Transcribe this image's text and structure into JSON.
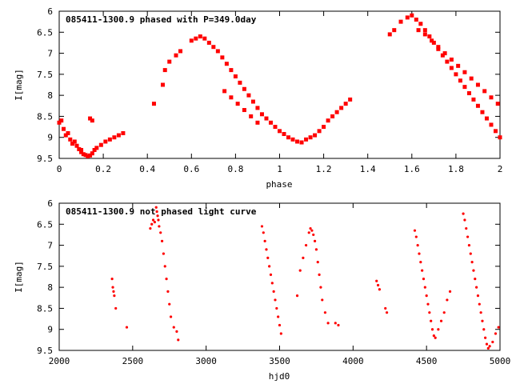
{
  "chart_data": [
    {
      "type": "scatter",
      "title": "085411-1300.9 phased with P=349.0day",
      "xlabel": "phase",
      "ylabel": "I[mag]",
      "xlim": [
        0,
        2
      ],
      "ylim": [
        9.5,
        6
      ],
      "y_inverted": true,
      "grid": false,
      "xticks": [
        0,
        0.2,
        0.4,
        0.6,
        0.8,
        1,
        1.2,
        1.4,
        1.6,
        1.8,
        2
      ],
      "xtick_labels": [
        "0",
        "0.2",
        "0.4",
        "0.6",
        "0.8",
        "1",
        "1.2",
        "1.4",
        "1.6",
        "1.8",
        "2"
      ],
      "yticks": [
        6,
        6.5,
        7,
        7.5,
        8,
        8.5,
        9,
        9.5
      ],
      "ytick_labels": [
        "6",
        "6.5",
        "7",
        "7.5",
        "8",
        "8.5",
        "9",
        "9.5"
      ],
      "marker_color": "#ff0000",
      "series": [
        {
          "name": "",
          "x": [
            0.0,
            0.02,
            0.03,
            0.05,
            0.06,
            0.08,
            0.09,
            0.1,
            0.11,
            0.12,
            0.13,
            0.14,
            0.15,
            0.16,
            0.17,
            0.19,
            0.21,
            0.23,
            0.25,
            0.27,
            0.29,
            0.01,
            0.04,
            0.07,
            0.1,
            0.14,
            0.15,
            0.43,
            0.47,
            0.48,
            0.5,
            0.53,
            0.55,
            0.6,
            0.62,
            0.64,
            0.66,
            0.68,
            0.7,
            0.72,
            0.74,
            0.76,
            0.78,
            0.8,
            0.82,
            0.84,
            0.86,
            0.88,
            0.9,
            0.92,
            0.94,
            0.96,
            0.98,
            1.0,
            1.02,
            1.04,
            1.06,
            1.08,
            1.1,
            0.75,
            0.78,
            0.81,
            0.84,
            0.87,
            0.9,
            1.12,
            1.14,
            1.16,
            1.18,
            1.2,
            1.22,
            1.24,
            1.26,
            1.28,
            1.3,
            1.32,
            1.5,
            1.52,
            1.55,
            1.58,
            1.6,
            1.62,
            1.64,
            1.66,
            1.68,
            1.7,
            1.72,
            1.74,
            1.76,
            1.78,
            1.8,
            1.82,
            1.84,
            1.86,
            1.88,
            1.9,
            1.92,
            1.94,
            1.96,
            1.98,
            2.0,
            1.63,
            1.66,
            1.69,
            1.72,
            1.75,
            1.78,
            1.81,
            1.84,
            1.87,
            1.9,
            1.93,
            1.96,
            1.99
          ],
          "y": [
            8.65,
            8.8,
            8.95,
            9.05,
            9.15,
            9.2,
            9.28,
            9.35,
            9.4,
            9.42,
            9.45,
            9.43,
            9.38,
            9.3,
            9.25,
            9.18,
            9.1,
            9.05,
            9.0,
            8.95,
            8.9,
            8.6,
            8.9,
            9.1,
            9.3,
            8.55,
            8.6,
            8.2,
            7.75,
            7.4,
            7.2,
            7.05,
            6.95,
            6.7,
            6.65,
            6.6,
            6.65,
            6.75,
            6.85,
            6.95,
            7.1,
            7.25,
            7.4,
            7.55,
            7.7,
            7.85,
            8.0,
            8.15,
            8.3,
            8.45,
            8.55,
            8.65,
            8.75,
            8.85,
            8.92,
            9.0,
            9.05,
            9.1,
            9.12,
            7.9,
            8.05,
            8.2,
            8.35,
            8.5,
            8.65,
            9.05,
            9.0,
            8.95,
            8.85,
            8.75,
            8.6,
            8.5,
            8.4,
            8.3,
            8.2,
            8.1,
            6.55,
            6.45,
            6.25,
            6.15,
            6.1,
            6.2,
            6.3,
            6.45,
            6.6,
            6.75,
            6.9,
            7.05,
            7.2,
            7.35,
            7.5,
            7.65,
            7.8,
            7.95,
            8.1,
            8.25,
            8.4,
            8.55,
            8.7,
            8.85,
            9.0,
            6.45,
            6.55,
            6.7,
            6.85,
            7.0,
            7.15,
            7.3,
            7.45,
            7.6,
            7.75,
            7.9,
            8.05,
            8.2
          ]
        }
      ]
    },
    {
      "type": "scatter",
      "title": "085411-1300.9 not phased light curve",
      "xlabel": "hjd0",
      "ylabel": "I[mag]",
      "xlim": [
        2000,
        5000
      ],
      "ylim": [
        9.5,
        6
      ],
      "y_inverted": true,
      "grid": false,
      "xticks": [
        2000,
        2500,
        3000,
        3500,
        4000,
        4500,
        5000
      ],
      "xtick_labels": [
        "2000",
        "2500",
        "3000",
        "3500",
        "4000",
        "4500",
        "5000"
      ],
      "yticks": [
        6,
        6.5,
        7,
        7.5,
        8,
        8.5,
        9,
        9.5
      ],
      "ytick_labels": [
        "6",
        "6.5",
        "7",
        "7.5",
        "8",
        "8.5",
        "9",
        "9.5"
      ],
      "marker_color": "#ff0000",
      "series": [
        {
          "name": "",
          "x": [
            2360,
            2365,
            2370,
            2375,
            2385,
            2460,
            2620,
            2630,
            2640,
            2650,
            2660,
            2665,
            2670,
            2675,
            2680,
            2690,
            2700,
            2710,
            2720,
            2730,
            2740,
            2750,
            2760,
            2780,
            2800,
            2810,
            3380,
            3390,
            3400,
            3410,
            3420,
            3430,
            3440,
            3450,
            3460,
            3470,
            3480,
            3490,
            3500,
            3510,
            3620,
            3640,
            3660,
            3680,
            3700,
            3710,
            3720,
            3730,
            3740,
            3750,
            3760,
            3770,
            3780,
            3790,
            3810,
            3830,
            3880,
            3900,
            4160,
            4170,
            4180,
            4220,
            4230,
            4420,
            4430,
            4440,
            4450,
            4460,
            4470,
            4480,
            4490,
            4500,
            4510,
            4520,
            4530,
            4540,
            4550,
            4560,
            4580,
            4600,
            4620,
            4640,
            4660,
            4750,
            4760,
            4770,
            4780,
            4790,
            4800,
            4810,
            4820,
            4830,
            4840,
            4850,
            4860,
            4870,
            4880,
            4890,
            4900,
            4910,
            4920,
            4930,
            4950,
            4970,
            4990
          ],
          "y": [
            7.8,
            8.0,
            8.1,
            8.2,
            8.5,
            8.95,
            6.6,
            6.5,
            6.4,
            6.45,
            6.1,
            6.2,
            6.3,
            6.4,
            6.55,
            6.7,
            6.9,
            7.2,
            7.5,
            7.8,
            8.1,
            8.4,
            8.7,
            8.95,
            9.05,
            9.25,
            6.55,
            6.7,
            6.9,
            7.1,
            7.3,
            7.5,
            7.7,
            7.9,
            8.1,
            8.3,
            8.5,
            8.7,
            8.9,
            9.1,
            8.2,
            7.6,
            7.3,
            7.0,
            6.7,
            6.6,
            6.65,
            6.75,
            6.9,
            7.1,
            7.4,
            7.7,
            8.0,
            8.3,
            8.6,
            8.85,
            8.85,
            8.9,
            7.85,
            7.95,
            8.05,
            8.5,
            8.6,
            6.65,
            6.8,
            7.0,
            7.2,
            7.4,
            7.6,
            7.8,
            8.0,
            8.2,
            8.4,
            8.6,
            8.8,
            9.0,
            9.15,
            9.2,
            9.0,
            8.8,
            8.6,
            8.3,
            8.1,
            6.25,
            6.4,
            6.6,
            6.8,
            7.0,
            7.2,
            7.4,
            7.6,
            7.8,
            8.0,
            8.2,
            8.4,
            8.6,
            8.8,
            9.0,
            9.2,
            9.35,
            9.45,
            9.4,
            9.3,
            9.1,
            8.95
          ]
        }
      ]
    }
  ]
}
